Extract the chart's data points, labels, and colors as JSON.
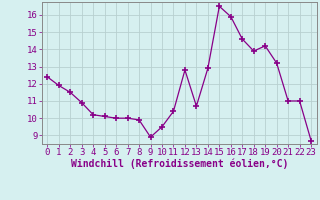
{
  "x": [
    0,
    1,
    2,
    3,
    4,
    5,
    6,
    7,
    8,
    9,
    10,
    11,
    12,
    13,
    14,
    15,
    16,
    17,
    18,
    19,
    20,
    21,
    22,
    23
  ],
  "y": [
    12.4,
    11.9,
    11.5,
    10.9,
    10.2,
    10.1,
    10.0,
    10.0,
    9.9,
    8.9,
    9.5,
    10.4,
    12.8,
    10.7,
    12.9,
    16.5,
    15.9,
    14.6,
    13.9,
    14.2,
    13.2,
    11.0,
    11.0,
    8.7
  ],
  "line_color": "#880088",
  "marker": "+",
  "marker_size": 4,
  "bg_color": "#d6f0f0",
  "grid_color": "#b8d0d0",
  "xlabel": "Windchill (Refroidissement éolien,°C)",
  "xlabel_color": "#880088",
  "ylim": [
    8.5,
    16.75
  ],
  "xlim": [
    -0.5,
    23.5
  ],
  "yticks": [
    9,
    10,
    11,
    12,
    13,
    14,
    15,
    16
  ],
  "xticks": [
    0,
    1,
    2,
    3,
    4,
    5,
    6,
    7,
    8,
    9,
    10,
    11,
    12,
    13,
    14,
    15,
    16,
    17,
    18,
    19,
    20,
    21,
    22,
    23
  ],
  "tick_color": "#880088",
  "tick_fontsize": 6.5,
  "xlabel_fontsize": 7.0,
  "spine_color": "#888888",
  "linewidth": 0.9
}
